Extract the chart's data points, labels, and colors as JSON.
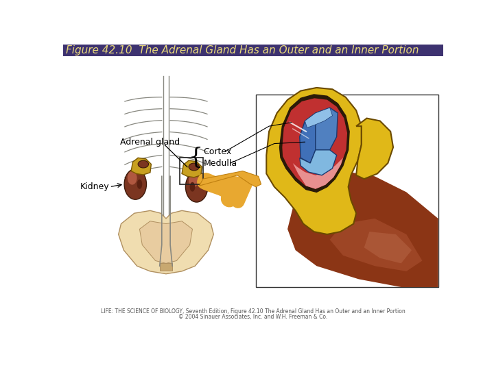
{
  "title": "Figure 42.10  The Adrenal Gland Has an Outer and an Inner Portion",
  "title_bg_color": "#3d3270",
  "title_text_color": "#e8d87a",
  "title_fontsize": 11,
  "bg_color": "#ffffff",
  "caption_line1": "LIFE: THE SCIENCE OF BIOLOGY, Seventh Edition, Figure 42.10 The Adrenal Gland Has an Outer and an Inner Portion",
  "caption_line2": "© 2004 Sinauer Associates, Inc. and W.H. Freeman & Co.",
  "caption_color": "#555555",
  "caption_fontsize": 5.5,
  "label_adrenal_gland": "Adrenal gland",
  "label_cortex": "Cortex",
  "label_medulla": "Medulla",
  "label_kidney": "Kidney",
  "label_color": "#000000",
  "label_fontsize": 9,
  "arrow_color": "#e8a830",
  "cortex_yellow": "#e8c020",
  "cortex_outline": "#6b4a00",
  "red_layer": "#c03030",
  "pink_layer": "#e89090",
  "blue_dark": "#4070b8",
  "blue_light": "#80b0d8",
  "kidney_dark": "#7B3520",
  "kidney_mid": "#9B5535",
  "kidney_light": "#bb7555",
  "skeleton_color": "#888880",
  "pelvis_fill": "#f0ddb0",
  "pelvis_edge": "#b09060",
  "adrenal_yellow": "#d4a820",
  "kidney_organ": "#7B3F00"
}
